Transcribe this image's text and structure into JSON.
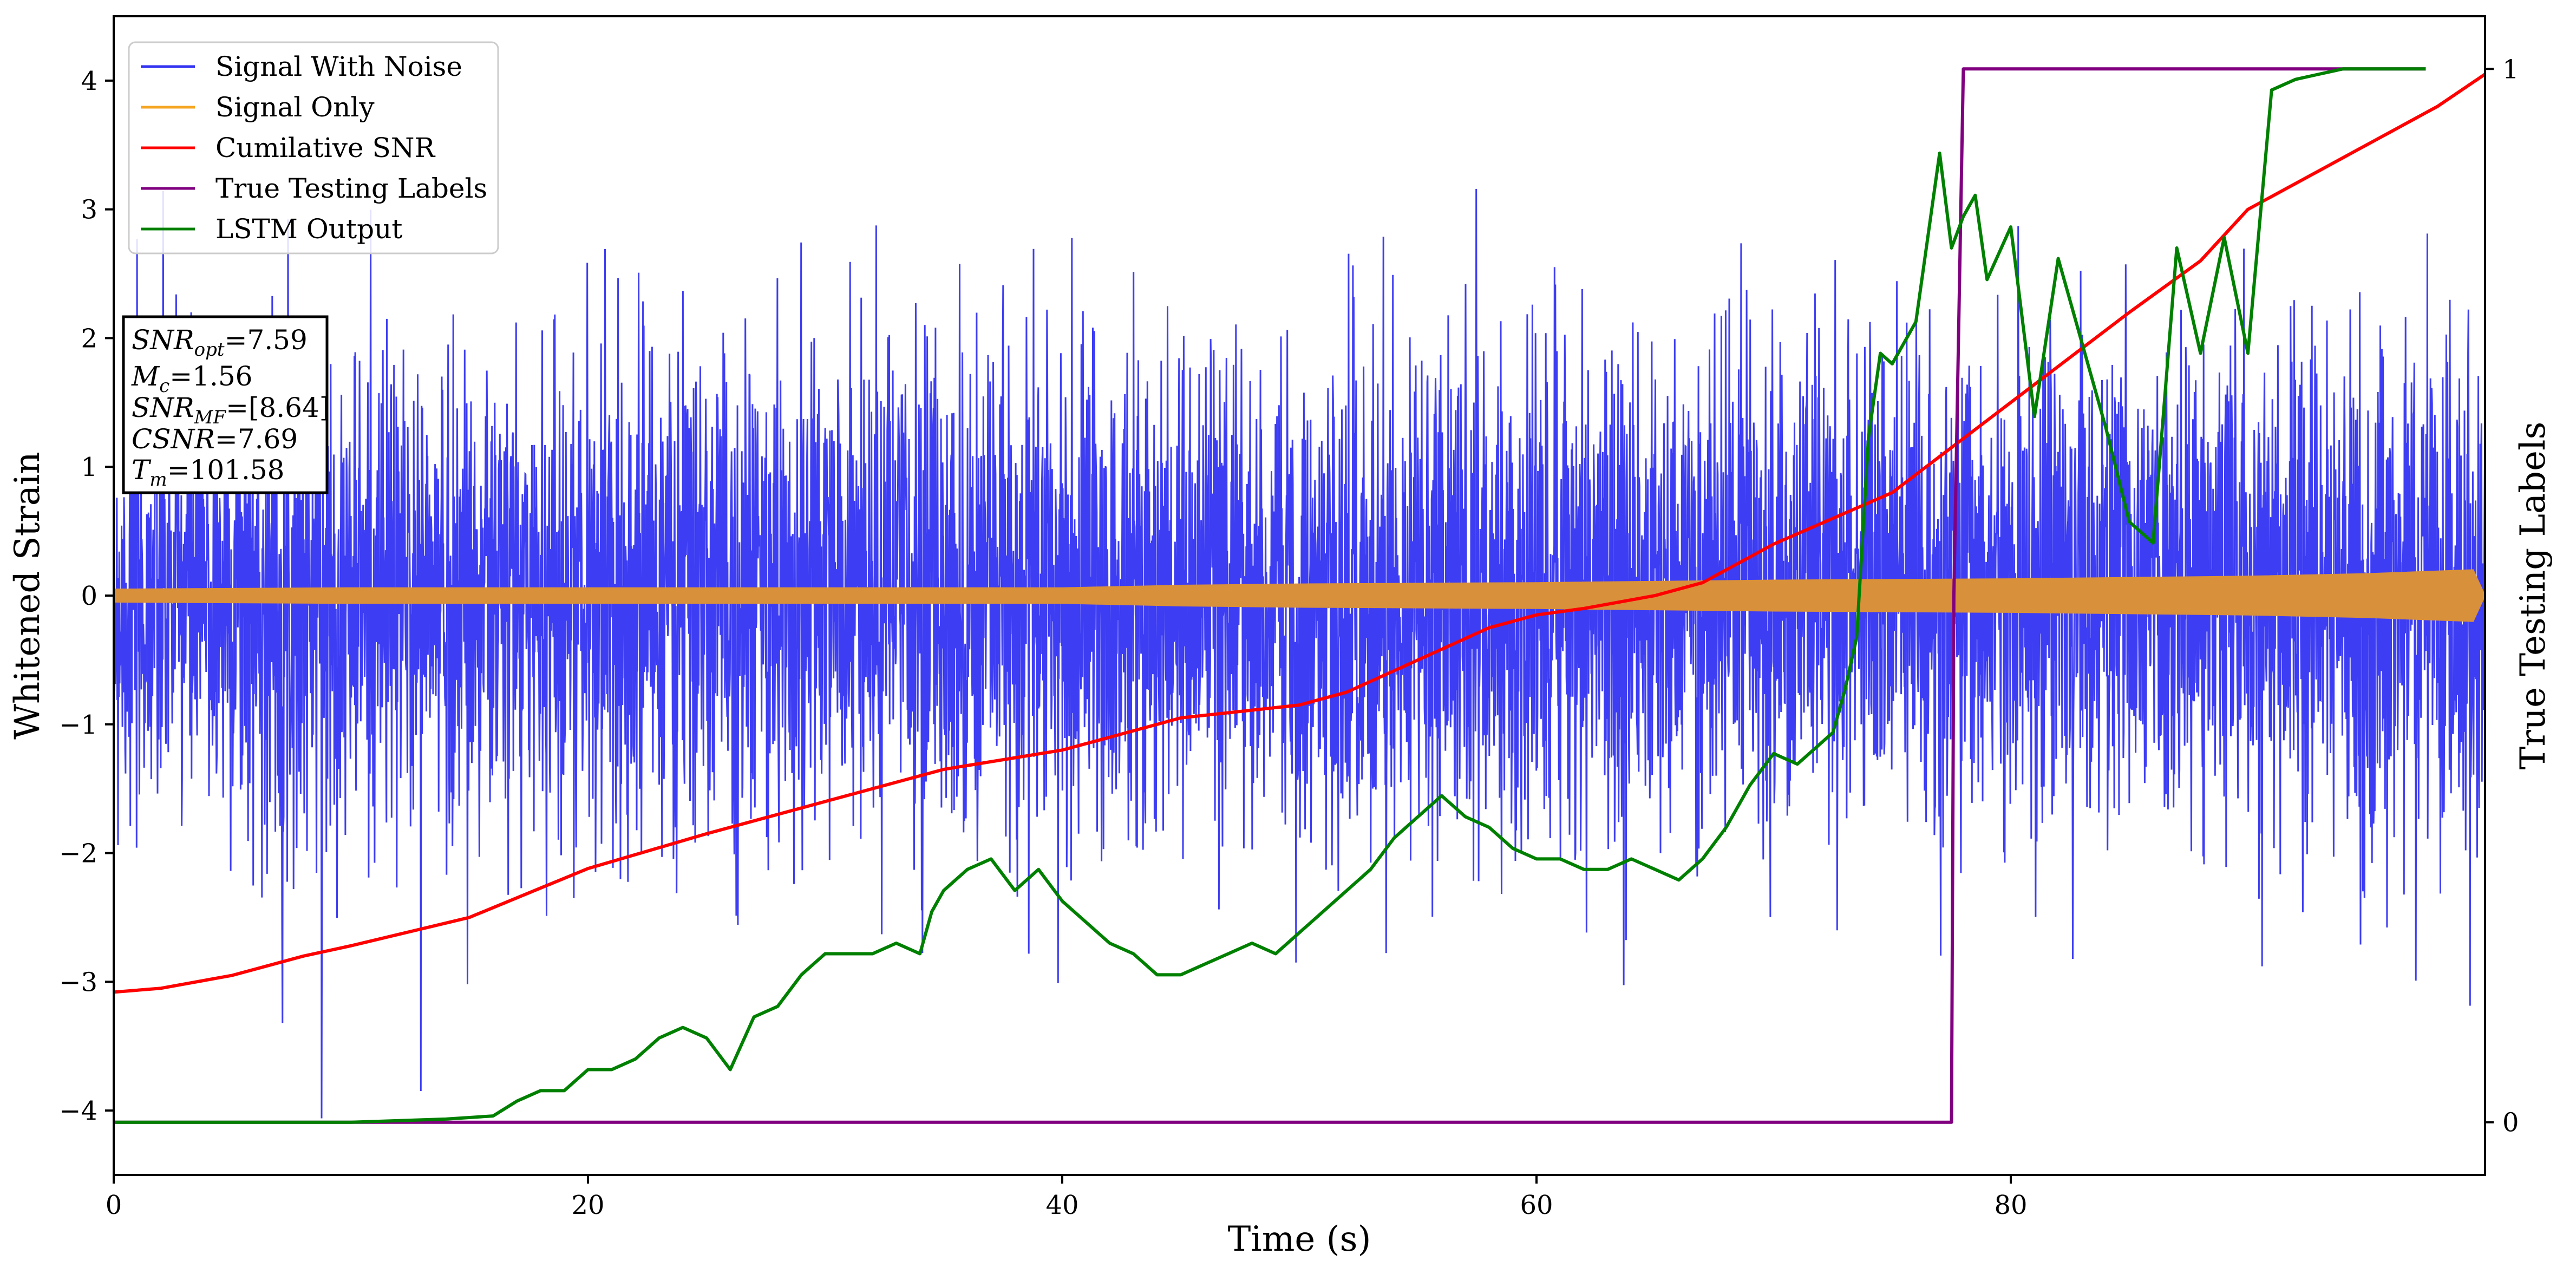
{
  "chart_data": {
    "type": "line",
    "xlabel": "Time (s)",
    "ylabel": "Whitened Strain",
    "y2label": "True Testing Labels",
    "xlim": [
      0,
      100
    ],
    "ylim": [
      -4.5,
      4.5
    ],
    "y2lim": [
      -0.05,
      1.05
    ],
    "x_ticks": [
      0,
      20,
      40,
      60,
      80
    ],
    "x_tick_labels": [
      "0",
      "20",
      "40",
      "60",
      "80"
    ],
    "y_ticks": [
      -4,
      -3,
      -2,
      -1,
      0,
      1,
      2,
      3,
      4
    ],
    "y_tick_labels": [
      "−4",
      "−3",
      "−2",
      "−1",
      "0",
      "1",
      "2",
      "3",
      "4"
    ],
    "y2_ticks": [
      0,
      1
    ],
    "y2_tick_labels": [
      "0",
      "1"
    ],
    "grid": false,
    "legend_position": "top-left",
    "legend": [
      {
        "name": "Signal With Noise",
        "color": "#3333f2"
      },
      {
        "name": "Signal Only",
        "color": "#f5a623"
      },
      {
        "name": "Cumilative SNR",
        "color": "#ff0000"
      },
      {
        "name": "True Testing Labels",
        "color": "#800080"
      },
      {
        "name": "LSTM Output",
        "color": "#008000"
      }
    ],
    "annotation": [
      {
        "sym": "SNR",
        "sub": "opt",
        "val": "=7.59"
      },
      {
        "sym": "M",
        "sub": "c",
        "val": "=1.56"
      },
      {
        "sym": "SNR",
        "sub": "MF",
        "val": "=[8.64]"
      },
      {
        "sym": "CSNR",
        "sub": "",
        "val": "=7.69"
      },
      {
        "sym": "T",
        "sub": "m",
        "val": "=101.58"
      }
    ],
    "series": [
      {
        "name": "Signal With Noise",
        "color": "#3333f2",
        "axis": "left",
        "rendering": "dense noisy oscillation about 0",
        "typical_band": [
          -1.4,
          1.4
        ],
        "extremes": [
          -4.1,
          3.5
        ]
      },
      {
        "name": "Signal Only",
        "color": "#d9903a",
        "axis": "left",
        "rendering": "chirp envelope band",
        "x": [
          0,
          10,
          20,
          30,
          40,
          45,
          50,
          60,
          70,
          80,
          90,
          95,
          99.5,
          100
        ],
        "envelope": [
          0.05,
          0.06,
          0.06,
          0.06,
          0.06,
          0.08,
          0.09,
          0.1,
          0.12,
          0.13,
          0.15,
          0.17,
          0.2,
          0.0
        ]
      },
      {
        "name": "Cumilative SNR",
        "color": "#ff0000",
        "axis": "left",
        "x": [
          0,
          2,
          5,
          8,
          10,
          15,
          20,
          25,
          30,
          35,
          40,
          42,
          45,
          50,
          52,
          55,
          58,
          60,
          62,
          65,
          67,
          70,
          75,
          80,
          85,
          88,
          90,
          95,
          98,
          100
        ],
        "y": [
          -3.08,
          -3.05,
          -2.95,
          -2.8,
          -2.72,
          -2.5,
          -2.12,
          -1.85,
          -1.6,
          -1.35,
          -1.2,
          -1.1,
          -0.95,
          -0.85,
          -0.75,
          -0.5,
          -0.25,
          -0.15,
          -0.1,
          0.0,
          0.1,
          0.4,
          0.8,
          1.5,
          2.2,
          2.6,
          3.0,
          3.5,
          3.8,
          4.05
        ]
      },
      {
        "name": "True Testing Labels",
        "color": "#800080",
        "axis": "right",
        "x": [
          0,
          77.5,
          77.6,
          78.0,
          97.5
        ],
        "y": [
          0,
          0,
          0.5,
          1.0,
          1.0
        ]
      },
      {
        "name": "LSTM Output",
        "color": "#008000",
        "axis": "right",
        "x": [
          0,
          10,
          14,
          16,
          17,
          18,
          19,
          20,
          21,
          22,
          23,
          24,
          25,
          26,
          27,
          28,
          29,
          30,
          31,
          32,
          33,
          34,
          34.5,
          35,
          35.5,
          36,
          37,
          38,
          39,
          40,
          41,
          42,
          43,
          44,
          45,
          46,
          47,
          48,
          49,
          50,
          51,
          52,
          53,
          54,
          55,
          56,
          57,
          58,
          59,
          60,
          61,
          62,
          63,
          64,
          65,
          66,
          67,
          68,
          69,
          70,
          71,
          72,
          72.5,
          73,
          73.5,
          74,
          74.5,
          75,
          76,
          77,
          77.5,
          78,
          78.5,
          79,
          80,
          81,
          82,
          83,
          84,
          85,
          86,
          87,
          88,
          89,
          90,
          91,
          92,
          93,
          94,
          95,
          96,
          97.5
        ],
        "y": [
          0,
          0,
          0.003,
          0.006,
          0.02,
          0.03,
          0.03,
          0.05,
          0.05,
          0.06,
          0.08,
          0.09,
          0.08,
          0.05,
          0.1,
          0.11,
          0.14,
          0.16,
          0.16,
          0.16,
          0.17,
          0.16,
          0.2,
          0.22,
          0.23,
          0.24,
          0.25,
          0.22,
          0.24,
          0.21,
          0.19,
          0.17,
          0.16,
          0.14,
          0.14,
          0.15,
          0.16,
          0.17,
          0.16,
          0.18,
          0.2,
          0.22,
          0.24,
          0.27,
          0.29,
          0.31,
          0.29,
          0.28,
          0.26,
          0.25,
          0.25,
          0.24,
          0.24,
          0.25,
          0.24,
          0.23,
          0.25,
          0.28,
          0.32,
          0.35,
          0.34,
          0.36,
          0.37,
          0.41,
          0.46,
          0.65,
          0.73,
          0.72,
          0.76,
          0.92,
          0.83,
          0.86,
          0.88,
          0.8,
          0.85,
          0.67,
          0.82,
          0.74,
          0.66,
          0.57,
          0.55,
          0.83,
          0.73,
          0.84,
          0.73,
          0.98,
          0.99,
          0.995,
          1.0,
          1.0,
          1.0,
          1.0
        ]
      }
    ]
  }
}
